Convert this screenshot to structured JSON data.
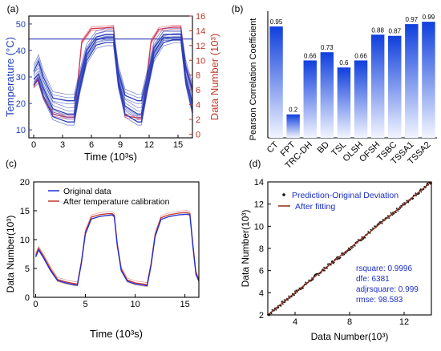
{
  "chart_data": [
    {
      "panel": "(a)",
      "type": "line",
      "xlabel": "Time (10³s)",
      "ylabel_left": "Temperature (°C)",
      "ylabel_right": "Data Number (10³)",
      "xlim": [
        -0.5,
        16.5
      ],
      "ylim_left": [
        7,
        53
      ],
      "ylim_right": [
        -0.5,
        16
      ],
      "xticks": [
        0,
        3,
        6,
        9,
        12,
        15
      ],
      "yticks_left": [
        10,
        20,
        30,
        40,
        50
      ],
      "yticks_right": [
        0,
        2,
        4,
        6,
        8,
        10,
        12,
        14,
        16
      ],
      "colors": {
        "left_axis": "#1f3fbf",
        "right_axis": "#c0392b",
        "temperature": "#2c3fb8",
        "data": "#d9364e"
      },
      "series": [
        {
          "axis": "left",
          "x": [
            -0.5,
            16.5
          ],
          "y": [
            44.3,
            44.3
          ]
        },
        {
          "axis": "right",
          "x": [
            0,
            0.4,
            1.0,
            2.0,
            3.5,
            4.2,
            4.5,
            5.0,
            6.0,
            7.5,
            8.3,
            8.7,
            9.5,
            10.8,
            11.2,
            11.6,
            12.2,
            13.0,
            14.5,
            15.3,
            15.8,
            16.5
          ],
          "y": [
            6.5,
            7.5,
            5.0,
            2.7,
            2.3,
            2.3,
            6.0,
            12.5,
            14.3,
            14.4,
            14.5,
            8.0,
            2.5,
            2.2,
            2.2,
            6.0,
            12.5,
            14.2,
            14.5,
            14.5,
            9.0,
            6.0
          ]
        },
        {
          "axis": "left",
          "x": [
            0,
            0.5,
            1.0,
            2.0,
            3.5,
            4.2,
            4.8,
            5.5,
            6.5,
            7.5,
            8.3,
            8.8,
            9.5,
            10.8,
            11.2,
            11.8,
            12.5,
            13.5,
            14.5,
            15.3,
            15.8,
            16.5
          ],
          "y": [
            32,
            36,
            30,
            22,
            21,
            21,
            30,
            40,
            45,
            46,
            46,
            32,
            23,
            21,
            21,
            30,
            41,
            46,
            46,
            46,
            34,
            25
          ]
        },
        {
          "axis": "left",
          "x": [
            0,
            0.5,
            1.0,
            2.0,
            3.5,
            4.2,
            4.8,
            5.5,
            6.5,
            7.5,
            8.3,
            8.8,
            9.5,
            10.8,
            11.2,
            11.8,
            12.5,
            13.5,
            14.5,
            15.3,
            15.8,
            16.5
          ],
          "y": [
            29,
            31,
            26,
            18,
            16,
            16,
            27,
            38,
            44,
            45,
            45,
            29,
            19,
            16,
            16,
            27,
            39,
            45,
            45,
            45,
            30,
            20
          ]
        },
        {
          "axis": "left",
          "x": [
            0,
            0.5,
            1.0,
            2.0,
            3.5,
            4.2,
            4.8,
            5.5,
            6.5,
            7.5,
            8.3,
            8.8,
            9.5,
            10.8,
            11.2,
            11.8,
            12.5,
            13.5,
            14.5,
            15.3,
            15.8,
            16.5
          ],
          "y": [
            27,
            29,
            23,
            15,
            13,
            13,
            25,
            36,
            42,
            43,
            43,
            27,
            16,
            13,
            13,
            25,
            37,
            43,
            44,
            44,
            28,
            17
          ]
        }
      ]
    },
    {
      "panel": "(b)",
      "type": "bar",
      "ylabel": "Pearson Correlation Coefficient",
      "ylim": [
        0,
        1.08
      ],
      "categories": [
        "CT",
        "FPT",
        "TRC-DH",
        "BD",
        "TSL",
        "OLSH",
        "OFSH",
        "TSBC",
        "TSSA1",
        "TSSA2"
      ],
      "values": [
        0.95,
        0.2,
        0.66,
        0.73,
        0.6,
        0.66,
        0.88,
        0.87,
        0.97,
        0.99
      ],
      "value_labels": [
        "0.95",
        "0.2",
        "0.66",
        "0.73",
        "0.6",
        "0.66",
        "0.88",
        "0.87",
        "0.97",
        "0.99"
      ],
      "colors": {
        "bar_top": "#0f3fdd",
        "bar_bottom": "#f2f5ff"
      }
    },
    {
      "panel": "(c)",
      "type": "line",
      "xlabel": "Time (10³s)",
      "ylabel": "Data Number(10³)",
      "xlim": [
        -0.2,
        16.4
      ],
      "ylim": [
        0,
        20
      ],
      "xticks": [
        0,
        5,
        10,
        15
      ],
      "yticks": [
        0,
        5,
        10,
        15,
        20
      ],
      "legend": "top-left",
      "series": [
        {
          "name": "Original data",
          "color": "#1e2fd0",
          "x": [
            0,
            0.3,
            0.8,
            1.5,
            2.2,
            3.0,
            3.8,
            4.2,
            4.6,
            5.0,
            5.6,
            6.4,
            7.2,
            7.7,
            7.9,
            8.2,
            8.6,
            9.2,
            10.0,
            10.8,
            11.2,
            11.6,
            12.0,
            12.6,
            13.4,
            14.4,
            15.2,
            15.5,
            15.8,
            16.1,
            16.4
          ],
          "y": [
            7.0,
            8.2,
            6.8,
            4.6,
            2.9,
            2.5,
            2.2,
            2.1,
            6.0,
            11.0,
            13.6,
            14.0,
            14.2,
            14.3,
            14.0,
            9.0,
            4.6,
            2.8,
            2.3,
            2.1,
            2.0,
            5.5,
            10.5,
            13.5,
            14.0,
            14.3,
            14.4,
            14.3,
            8.8,
            4.0,
            2.8
          ]
        },
        {
          "name": "After temperature calibration",
          "color": "#c0392b",
          "x": [
            0,
            0.3,
            0.8,
            1.5,
            2.2,
            3.0,
            3.8,
            4.2,
            4.6,
            5.0,
            5.6,
            6.4,
            7.2,
            7.7,
            7.9,
            8.2,
            8.6,
            9.2,
            10.0,
            10.8,
            11.2,
            11.6,
            12.0,
            12.6,
            13.4,
            14.4,
            15.2,
            15.5,
            15.8,
            16.1,
            16.4
          ],
          "y": [
            7.3,
            8.5,
            7.1,
            4.9,
            3.1,
            2.7,
            2.4,
            2.3,
            6.2,
            11.3,
            13.9,
            14.3,
            14.5,
            14.5,
            14.2,
            9.3,
            4.9,
            3.0,
            2.5,
            2.3,
            2.2,
            5.8,
            10.8,
            13.8,
            14.3,
            14.6,
            14.7,
            14.5,
            9.1,
            4.3,
            3.0
          ]
        }
      ]
    },
    {
      "panel": "(d)",
      "type": "scatter",
      "xlabel": "Data Number(10³)",
      "ylabel": "Data Number(10³)",
      "xlim": [
        2,
        14
      ],
      "ylim": [
        2,
        14
      ],
      "xticks": [
        4,
        8,
        12
      ],
      "yticks": [
        2,
        4,
        6,
        8,
        10,
        12,
        14
      ],
      "legend": "top-left",
      "series": [
        {
          "name": "Prediction-Original Deviation",
          "marker": "point",
          "color": "#111111"
        },
        {
          "name": "After fitting",
          "color": "#8b2a1a",
          "x": [
            2,
            14
          ],
          "y": [
            2,
            14
          ]
        }
      ],
      "stats": [
        "rsquare: 0.9996",
        "dfe: 6381",
        "adjrsquare: 0.999",
        "rmse: 98.583"
      ],
      "stats_color": "#1a2fc8"
    }
  ]
}
